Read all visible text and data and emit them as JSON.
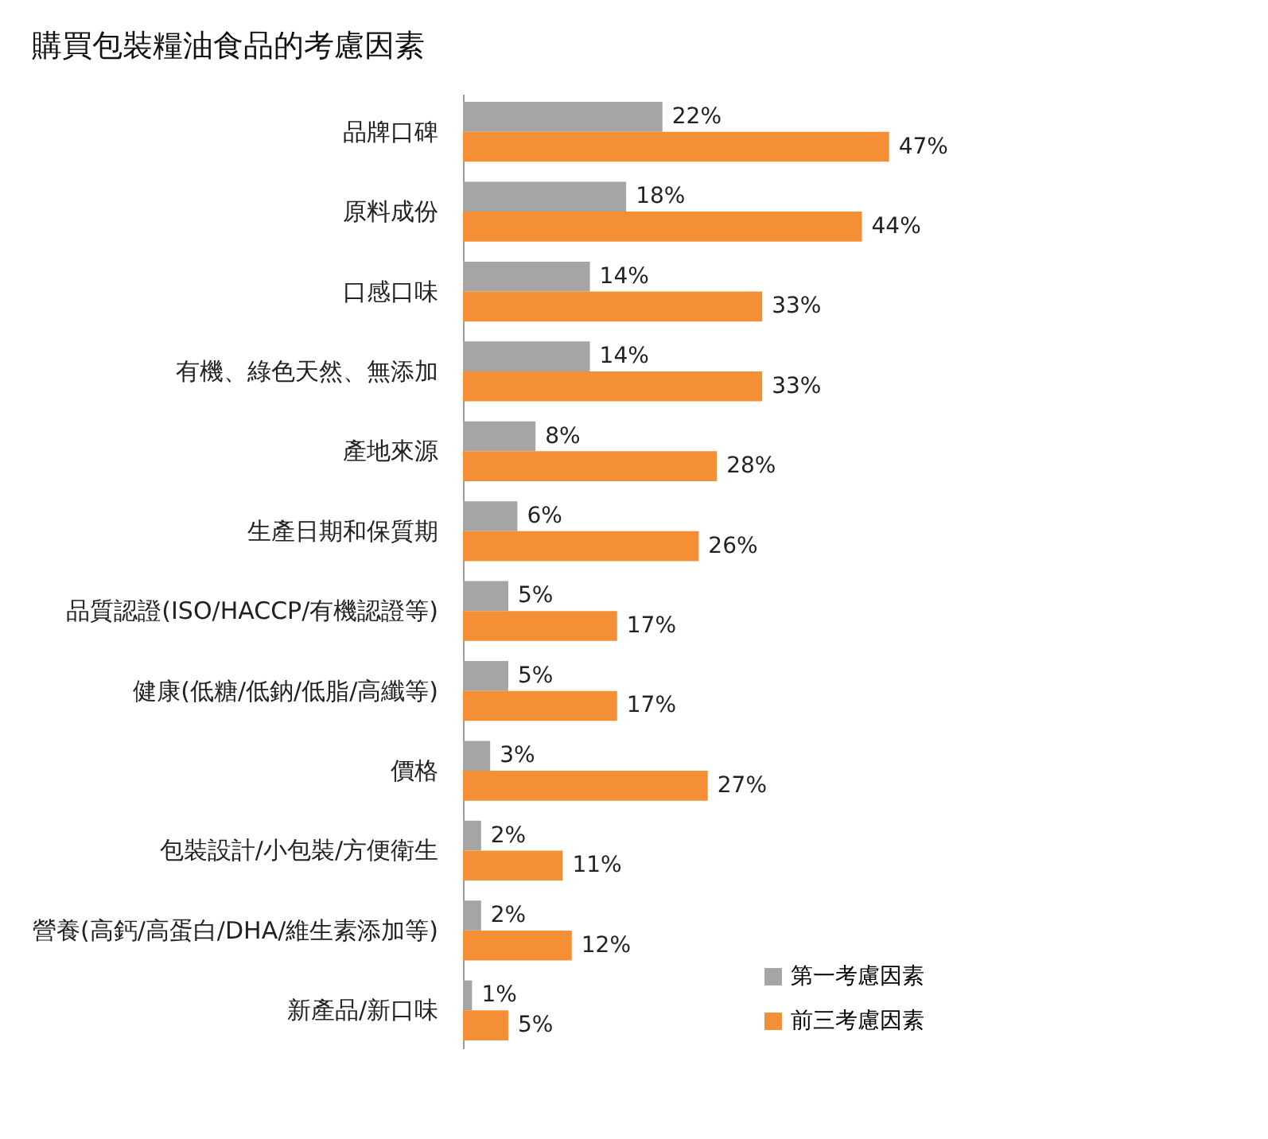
{
  "chart_data": {
    "type": "bar",
    "orientation": "horizontal",
    "title": "購買包裝糧油食品的考慮因素",
    "categories": [
      "品牌口碑",
      "原料成份",
      "口感口味",
      "有機、綠色天然、無添加",
      "產地來源",
      "生產日期和保質期",
      "品質認證(ISO/HACCP/有機認證等)",
      "健康(低糖/低鈉/低脂/高纖等)",
      "價格",
      "包裝設計/小包裝/方便衛生",
      "營養(高鈣/高蛋白/DHA/維生素添加等)",
      "新產品/新口味"
    ],
    "series": [
      {
        "name": "第一考慮因素",
        "color": "#a5a5a5",
        "values": [
          22,
          18,
          14,
          14,
          8,
          6,
          5,
          5,
          3,
          2,
          2,
          1
        ],
        "value_labels": [
          "22%",
          "18%",
          "14%",
          "14%",
          "8%",
          "6%",
          "5%",
          "5%",
          "3%",
          "2%",
          "2%",
          "1%"
        ]
      },
      {
        "name": "前三考慮因素",
        "color": "#f58f36",
        "values": [
          47,
          44,
          33,
          33,
          28,
          26,
          17,
          17,
          27,
          11,
          12,
          5
        ],
        "value_labels": [
          "47%",
          "44%",
          "33%",
          "33%",
          "28%",
          "26%",
          "17%",
          "17%",
          "27%",
          "11%",
          "12%",
          "5%"
        ]
      }
    ],
    "legend": "bottom right",
    "grid": false,
    "tick_labels": "y"
  }
}
